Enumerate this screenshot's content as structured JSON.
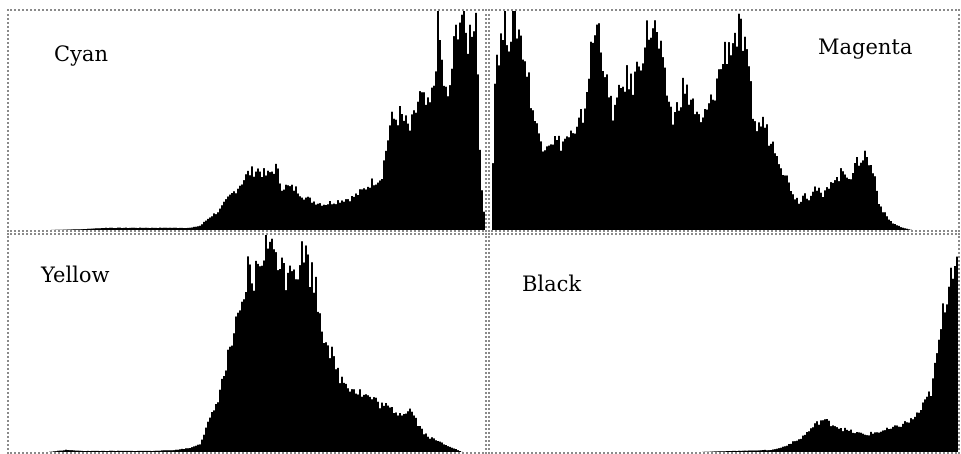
{
  "chart_data": [
    {
      "type": "area",
      "name": "Cyan",
      "label": "Cyan",
      "xlim": [
        0,
        100
      ],
      "ylim": [
        0,
        1
      ],
      "grid": false,
      "color": "#000000",
      "shape": [
        [
          0,
          0
        ],
        [
          8,
          0
        ],
        [
          12,
          0.002
        ],
        [
          16,
          0.005
        ],
        [
          20,
          0.01
        ],
        [
          38,
          0.01
        ],
        [
          40,
          0.02
        ],
        [
          42,
          0.06
        ],
        [
          44,
          0.09
        ],
        [
          46,
          0.15
        ],
        [
          48,
          0.2
        ],
        [
          50,
          0.26
        ],
        [
          52,
          0.28
        ],
        [
          54,
          0.25
        ],
        [
          56,
          0.29
        ],
        [
          57,
          0.2
        ],
        [
          58,
          0.2
        ],
        [
          60,
          0.19
        ],
        [
          62,
          0.15
        ],
        [
          64,
          0.13
        ],
        [
          66,
          0.12
        ],
        [
          68,
          0.13
        ],
        [
          70,
          0.14
        ],
        [
          72,
          0.15
        ],
        [
          74,
          0.18
        ],
        [
          76,
          0.22
        ],
        [
          78,
          0.24
        ],
        [
          80,
          0.5
        ],
        [
          82,
          0.53
        ],
        [
          84,
          0.46
        ],
        [
          85,
          0.52
        ],
        [
          86,
          0.62
        ],
        [
          88,
          0.55
        ],
        [
          89,
          0.65
        ],
        [
          90,
          0.95
        ],
        [
          91,
          0.7
        ],
        [
          92,
          0.58
        ],
        [
          93,
          0.78
        ],
        [
          94,
          0.96
        ],
        [
          95,
          1.0
        ],
        [
          96,
          0.85
        ],
        [
          97,
          0.95
        ],
        [
          98,
          1.0
        ],
        [
          99,
          0.2
        ],
        [
          100,
          0
        ]
      ]
    },
    {
      "type": "area",
      "name": "Magenta",
      "label": "Magenta",
      "xlim": [
        0,
        100
      ],
      "ylim": [
        0,
        1
      ],
      "grid": false,
      "color": "#000000",
      "shape": [
        [
          0,
          0
        ],
        [
          1,
          0.8
        ],
        [
          2,
          0.85
        ],
        [
          3,
          0.95
        ],
        [
          4,
          0.9
        ],
        [
          5,
          1.0
        ],
        [
          6,
          0.92
        ],
        [
          7,
          0.82
        ],
        [
          8,
          0.7
        ],
        [
          9,
          0.55
        ],
        [
          10,
          0.45
        ],
        [
          11,
          0.4
        ],
        [
          13,
          0.42
        ],
        [
          15,
          0.4
        ],
        [
          17,
          0.44
        ],
        [
          18,
          0.42
        ],
        [
          19,
          0.5
        ],
        [
          20,
          0.55
        ],
        [
          21,
          0.75
        ],
        [
          22,
          0.9
        ],
        [
          23,
          0.94
        ],
        [
          24,
          0.8
        ],
        [
          25,
          0.62
        ],
        [
          26,
          0.55
        ],
        [
          27,
          0.58
        ],
        [
          28,
          0.66
        ],
        [
          29,
          0.7
        ],
        [
          30,
          0.66
        ],
        [
          31,
          0.72
        ],
        [
          32,
          0.8
        ],
        [
          33,
          0.88
        ],
        [
          34,
          0.93
        ],
        [
          35,
          0.92
        ],
        [
          36,
          0.84
        ],
        [
          37,
          0.7
        ],
        [
          38,
          0.6
        ],
        [
          39,
          0.5
        ],
        [
          40,
          0.58
        ],
        [
          41,
          0.66
        ],
        [
          42,
          0.62
        ],
        [
          43,
          0.6
        ],
        [
          44,
          0.52
        ],
        [
          45,
          0.48
        ],
        [
          46,
          0.55
        ],
        [
          47,
          0.58
        ],
        [
          48,
          0.66
        ],
        [
          49,
          0.74
        ],
        [
          50,
          0.82
        ],
        [
          51,
          0.86
        ],
        [
          52,
          0.88
        ],
        [
          53,
          0.92
        ],
        [
          54,
          0.85
        ],
        [
          55,
          0.72
        ],
        [
          56,
          0.55
        ],
        [
          57,
          0.45
        ],
        [
          58,
          0.52
        ],
        [
          59,
          0.45
        ],
        [
          60,
          0.4
        ],
        [
          61,
          0.38
        ],
        [
          62,
          0.3
        ],
        [
          63,
          0.25
        ],
        [
          64,
          0.2
        ],
        [
          65,
          0.15
        ],
        [
          66,
          0.13
        ],
        [
          67,
          0.17
        ],
        [
          68,
          0.15
        ],
        [
          69,
          0.2
        ],
        [
          70,
          0.18
        ],
        [
          71,
          0.15
        ],
        [
          72,
          0.2
        ],
        [
          73,
          0.24
        ],
        [
          74,
          0.23
        ],
        [
          75,
          0.27
        ],
        [
          76,
          0.26
        ],
        [
          77,
          0.25
        ],
        [
          78,
          0.3
        ],
        [
          79,
          0.33
        ],
        [
          80,
          0.35
        ],
        [
          81,
          0.3
        ],
        [
          82,
          0.25
        ],
        [
          83,
          0.12
        ],
        [
          84,
          0.08
        ],
        [
          85,
          0.05
        ],
        [
          86,
          0.03
        ],
        [
          88,
          0.01
        ],
        [
          90,
          0
        ],
        [
          100,
          0
        ]
      ]
    },
    {
      "type": "area",
      "name": "Yellow",
      "label": "Yellow",
      "xlim": [
        0,
        100
      ],
      "ylim": [
        0,
        1
      ],
      "grid": false,
      "color": "#000000",
      "shape": [
        [
          0,
          0
        ],
        [
          8,
          0
        ],
        [
          12,
          0.01
        ],
        [
          15,
          0.005
        ],
        [
          20,
          0.005
        ],
        [
          30,
          0.005
        ],
        [
          35,
          0.01
        ],
        [
          38,
          0.02
        ],
        [
          40,
          0.04
        ],
        [
          41,
          0.1
        ],
        [
          43,
          0.2
        ],
        [
          45,
          0.36
        ],
        [
          47,
          0.55
        ],
        [
          48,
          0.6
        ],
        [
          49,
          0.66
        ],
        [
          50,
          0.85
        ],
        [
          51,
          0.78
        ],
        [
          52,
          0.85
        ],
        [
          53,
          0.92
        ],
        [
          54,
          1.0
        ],
        [
          55,
          0.92
        ],
        [
          56,
          0.96
        ],
        [
          57,
          0.86
        ],
        [
          58,
          0.83
        ],
        [
          59,
          0.92
        ],
        [
          60,
          0.85
        ],
        [
          61,
          0.9
        ],
        [
          62,
          0.94
        ],
        [
          63,
          0.85
        ],
        [
          64,
          0.8
        ],
        [
          65,
          0.66
        ],
        [
          66,
          0.55
        ],
        [
          67,
          0.5
        ],
        [
          68,
          0.42
        ],
        [
          69,
          0.36
        ],
        [
          70,
          0.33
        ],
        [
          72,
          0.3
        ],
        [
          74,
          0.27
        ],
        [
          76,
          0.25
        ],
        [
          78,
          0.22
        ],
        [
          80,
          0.2
        ],
        [
          82,
          0.18
        ],
        [
          84,
          0.2
        ],
        [
          85,
          0.17
        ],
        [
          86,
          0.12
        ],
        [
          87,
          0.09
        ],
        [
          88,
          0.07
        ],
        [
          90,
          0.05
        ],
        [
          92,
          0.03
        ],
        [
          94,
          0.01
        ],
        [
          95,
          0
        ],
        [
          100,
          0
        ]
      ]
    },
    {
      "type": "area",
      "name": "Black",
      "label": "Black",
      "xlim": [
        0,
        100
      ],
      "ylim": [
        0,
        1
      ],
      "grid": false,
      "color": "#000000",
      "shape": [
        [
          0,
          0
        ],
        [
          45,
          0
        ],
        [
          48,
          0.003
        ],
        [
          52,
          0.005
        ],
        [
          56,
          0.007
        ],
        [
          60,
          0.01
        ],
        [
          62,
          0.02
        ],
        [
          64,
          0.04
        ],
        [
          66,
          0.06
        ],
        [
          68,
          0.1
        ],
        [
          70,
          0.14
        ],
        [
          71,
          0.15
        ],
        [
          72,
          0.14
        ],
        [
          74,
          0.12
        ],
        [
          76,
          0.1
        ],
        [
          78,
          0.09
        ],
        [
          80,
          0.08
        ],
        [
          82,
          0.09
        ],
        [
          84,
          0.1
        ],
        [
          86,
          0.11
        ],
        [
          88,
          0.13
        ],
        [
          90,
          0.15
        ],
        [
          92,
          0.2
        ],
        [
          94,
          0.28
        ],
        [
          95,
          0.4
        ],
        [
          96,
          0.55
        ],
        [
          97,
          0.7
        ],
        [
          98,
          0.82
        ],
        [
          99,
          0.92
        ],
        [
          100,
          0.97
        ]
      ]
    }
  ]
}
